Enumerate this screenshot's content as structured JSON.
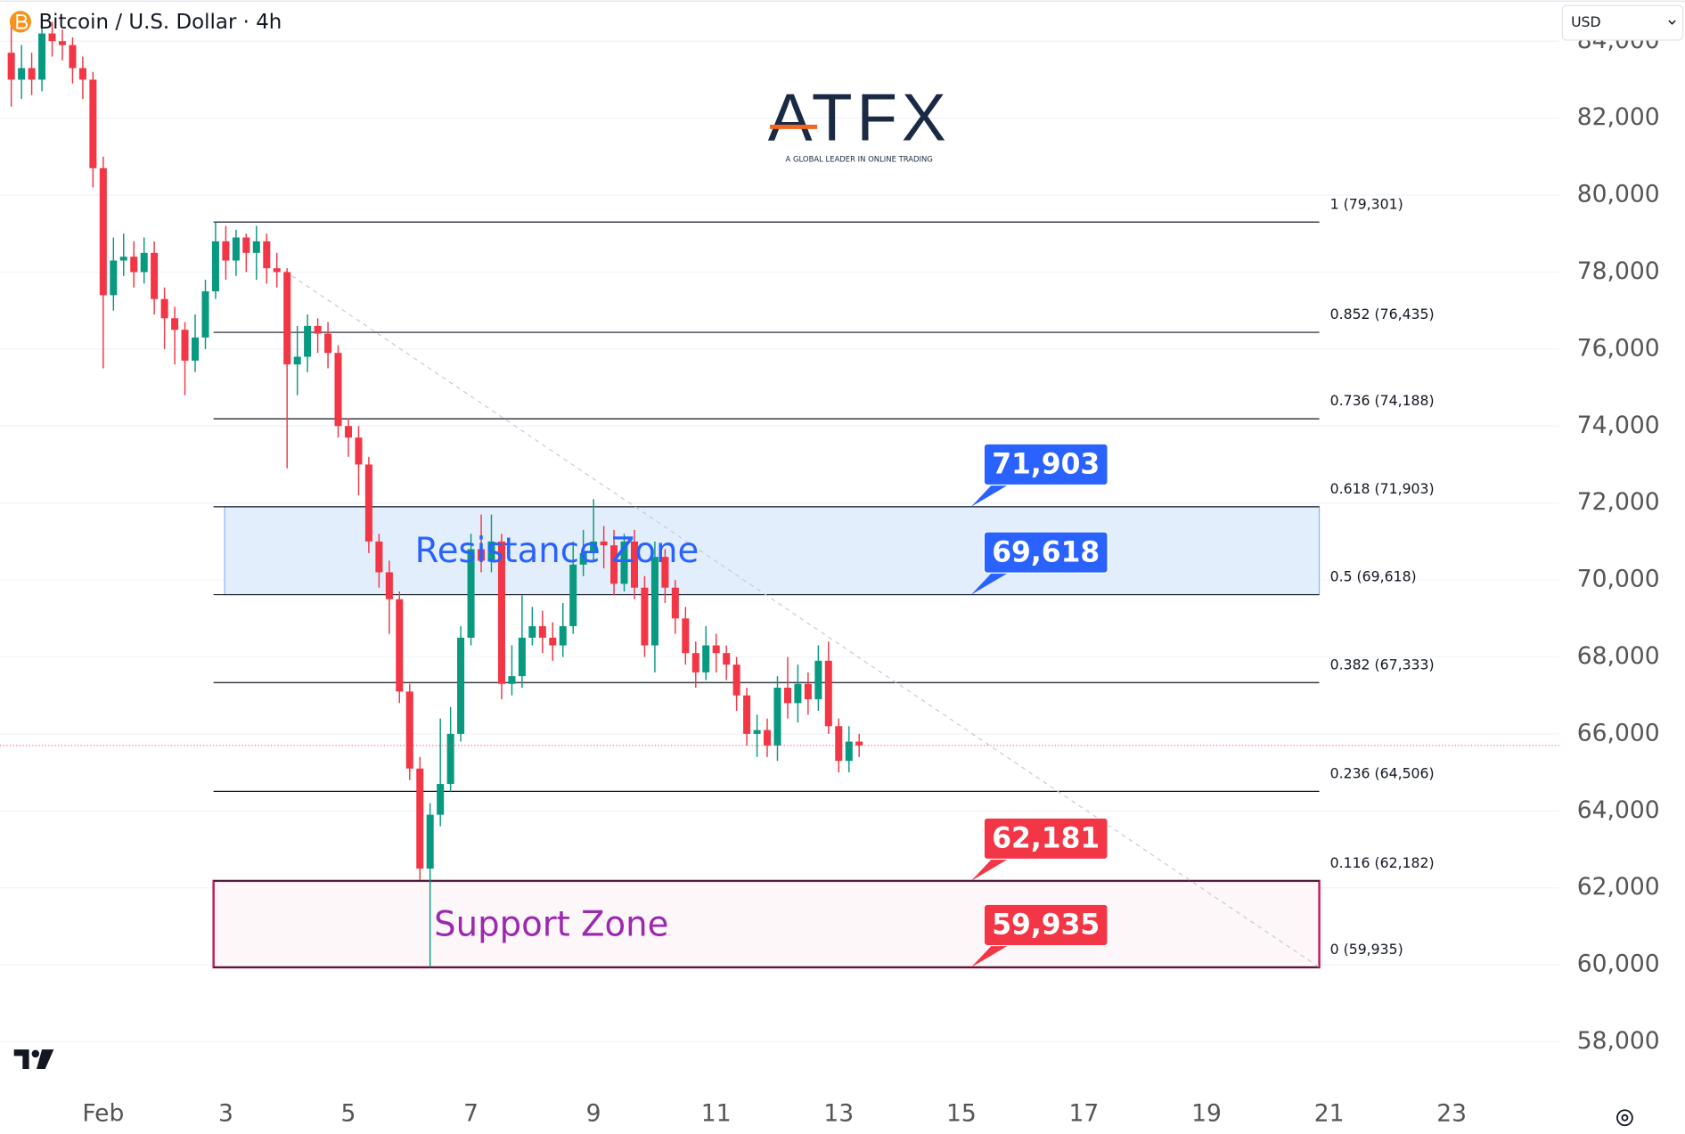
{
  "header": {
    "symbol": "Bitcoin / U.S. Dollar · 4h",
    "currency": "USD"
  },
  "logo": {
    "name": "ATFX",
    "tagline": "A GLOBAL LEADER IN ONLINE TRADING"
  },
  "chart_data": {
    "type": "candlestick",
    "x": [
      -0.5,
      -0.333,
      -0.167,
      0,
      0.167,
      0.333,
      0.5,
      0.667,
      0.833,
      1,
      1.167,
      1.333,
      1.5,
      1.667,
      1.833,
      2,
      2.167,
      2.333,
      2.5,
      2.667,
      2.833,
      3,
      3.167,
      3.333,
      3.5,
      3.667,
      3.833,
      4,
      4.167,
      4.333,
      4.5,
      4.667,
      4.833,
      5,
      5.167,
      5.333,
      5.5,
      5.667,
      5.833,
      6,
      6.167,
      6.333,
      6.5,
      6.667,
      6.833,
      7,
      7.167,
      7.333,
      7.5,
      7.667,
      7.833,
      8,
      8.167,
      8.333,
      8.5,
      8.667,
      8.833,
      9,
      9.167,
      9.333,
      9.5,
      9.667,
      9.833,
      10,
      10.167,
      10.333,
      10.5,
      10.667,
      10.833,
      11,
      11.167,
      11.333,
      11.5,
      11.667,
      11.833,
      12,
      12.167,
      12.333,
      12.5,
      12.667,
      12.833,
      13,
      13.167,
      13.333
    ],
    "open": [
      83700,
      83000,
      83300,
      83000,
      84200,
      84000,
      83900,
      83300,
      83000,
      80700,
      77400,
      78300,
      78400,
      78000,
      78500,
      77300,
      76800,
      76500,
      75700,
      76300,
      77500,
      78800,
      78300,
      78900,
      78500,
      78800,
      78100,
      78000,
      75600,
      75800,
      76600,
      76400,
      75900,
      74000,
      73700,
      73000,
      71000,
      70200,
      69500,
      67100,
      65100,
      62500,
      63900,
      64700,
      66000,
      68500,
      70800,
      70500,
      71000,
      67300,
      67500,
      68500,
      68800,
      68500,
      68300,
      68800,
      70400,
      70700,
      71000,
      70900,
      69900,
      71000,
      69800,
      68300,
      70600,
      69800,
      69000,
      68100,
      67600,
      68300,
      68100,
      67800,
      67000,
      66000,
      66100,
      65700,
      67200,
      66800,
      67300,
      66900,
      67900,
      66200,
      65300,
      65800
    ],
    "high": [
      84400,
      83900,
      83700,
      84600,
      84500,
      84300,
      84100,
      83600,
      83200,
      81000,
      78900,
      79000,
      78800,
      78900,
      78800,
      77600,
      77100,
      76700,
      76900,
      77800,
      79301,
      79200,
      79100,
      79000,
      79200,
      79000,
      78500,
      78100,
      76600,
      76900,
      76800,
      76700,
      76100,
      74200,
      74000,
      73200,
      71200,
      70500,
      69700,
      67300,
      65400,
      64200,
      66400,
      66700,
      68800,
      71200,
      71700,
      71700,
      71200,
      68300,
      69600,
      69300,
      69200,
      68900,
      69400,
      71000,
      71300,
      72100,
      71400,
      71300,
      71200,
      71300,
      70100,
      71000,
      70800,
      70000,
      69300,
      68400,
      68800,
      68600,
      68300,
      68000,
      67200,
      66500,
      66400,
      67500,
      68000,
      67800,
      67600,
      68300,
      68400,
      66400,
      66200,
      66000
    ],
    "low": [
      82300,
      82500,
      82600,
      82700,
      83600,
      83500,
      82900,
      82500,
      80200,
      75500,
      77000,
      77900,
      77600,
      77700,
      76900,
      76000,
      75600,
      74800,
      75400,
      76000,
      77300,
      77800,
      77900,
      78000,
      77800,
      77700,
      77600,
      72900,
      74800,
      75400,
      75900,
      75500,
      73700,
      73200,
      72200,
      70700,
      69800,
      68600,
      66800,
      64800,
      62200,
      59935,
      63600,
      64500,
      65800,
      68300,
      70200,
      70200,
      66900,
      67000,
      67200,
      68300,
      68100,
      67900,
      68000,
      68600,
      70100,
      70500,
      70300,
      69600,
      69700,
      69500,
      68000,
      67600,
      69400,
      68600,
      67800,
      67200,
      67400,
      67600,
      67400,
      66600,
      65700,
      65400,
      65400,
      65300,
      66400,
      66300,
      66500,
      66600,
      66000,
      65000,
      65000,
      65400
    ],
    "close": [
      83000,
      83300,
      83000,
      84200,
      84000,
      83900,
      83300,
      83000,
      80700,
      77400,
      78300,
      78400,
      78000,
      78500,
      77300,
      76800,
      76500,
      75700,
      76300,
      77500,
      78800,
      78300,
      78900,
      78500,
      78800,
      78100,
      78000,
      75600,
      75800,
      76600,
      76400,
      75900,
      74000,
      73700,
      73000,
      71000,
      70200,
      69500,
      67100,
      65100,
      62500,
      63900,
      64700,
      66000,
      68500,
      70800,
      70500,
      71000,
      67300,
      67500,
      68500,
      68800,
      68500,
      68300,
      68800,
      70400,
      70700,
      71000,
      70900,
      69900,
      71000,
      69800,
      68300,
      70600,
      69800,
      69000,
      68100,
      67600,
      68300,
      68100,
      67800,
      67000,
      66000,
      66100,
      65700,
      67200,
      66800,
      67300,
      66900,
      67900,
      66200,
      65300,
      65800,
      65700
    ],
    "up_color": "#089981",
    "down_color": "#f23645",
    "xlim": [
      -0.684,
      24.754
    ],
    "xticks": [
      {
        "value": 1,
        "label": "Feb"
      },
      3,
      5,
      7,
      9,
      11,
      13,
      15,
      17,
      19,
      21,
      23
    ],
    "ylim": [
      56900,
      85070
    ],
    "yticks": [
      {
        "value": 58000,
        "label": "58,000"
      },
      {
        "value": 60000,
        "label": "60,000"
      },
      {
        "value": 62000,
        "label": "62,000"
      },
      {
        "value": 64000,
        "label": "64,000"
      },
      {
        "value": 66000,
        "label": "66,000"
      },
      {
        "value": 68000,
        "label": "68,000"
      },
      {
        "value": 70000,
        "label": "70,000"
      },
      {
        "value": 72000,
        "label": "72,000"
      },
      {
        "value": 74000,
        "label": "74,000"
      },
      {
        "value": 76000,
        "label": "76,000"
      },
      {
        "value": 78000,
        "label": "78,000"
      },
      {
        "value": 80000,
        "label": "80,000"
      },
      {
        "value": 82000,
        "label": "82,000"
      },
      {
        "value": 84000,
        "label": "84,000"
      }
    ],
    "grid": true,
    "fib_x": [
      2.8,
      20.84
    ],
    "fib_levels": [
      {
        "value": 79301,
        "label": "1 (79,301)"
      },
      {
        "value": 76435,
        "label": "0.852 (76,435)"
      },
      {
        "value": 74188,
        "label": "0.736 (74,188)"
      },
      {
        "value": 71903,
        "label": "0.618 (71,903)"
      },
      {
        "value": 69618,
        "label": "0.5 (69,618)"
      },
      {
        "value": 67333,
        "label": "0.382 (67,333)"
      },
      {
        "value": 64506,
        "label": "0.236 (64,506)"
      },
      {
        "value": 62182,
        "label": "0.116 (62,182)"
      },
      {
        "value": 59935,
        "label": "0 (59,935)"
      }
    ],
    "zones": [
      {
        "name": "Resistance Zone",
        "low": 69618,
        "high": 71903,
        "x": [
          2.98,
          20.84
        ],
        "fill": "#e3eefc",
        "stroke": "#90b4ee",
        "color": "#2962ff"
      },
      {
        "name": "Support Zone",
        "low": 59935,
        "high": 62181,
        "x": [
          2.8,
          20.84
        ],
        "fill": "#fdf7f9",
        "stroke": "#c2185b",
        "color": "#9c27b0"
      }
    ],
    "tag_x": 15.16,
    "price_tags": [
      {
        "value": 71903,
        "label": "71,903",
        "color": "#2962ff"
      },
      {
        "value": 69618,
        "label": "69,618",
        "color": "#2962ff"
      },
      {
        "value": 62181,
        "label": "62,181",
        "color": "#f23645"
      },
      {
        "value": 59935,
        "label": "59,935",
        "color": "#f23645"
      }
    ],
    "trendline": {
      "x": [
        3.96,
        20.84
      ],
      "y": [
        78030,
        59935
      ]
    }
  }
}
